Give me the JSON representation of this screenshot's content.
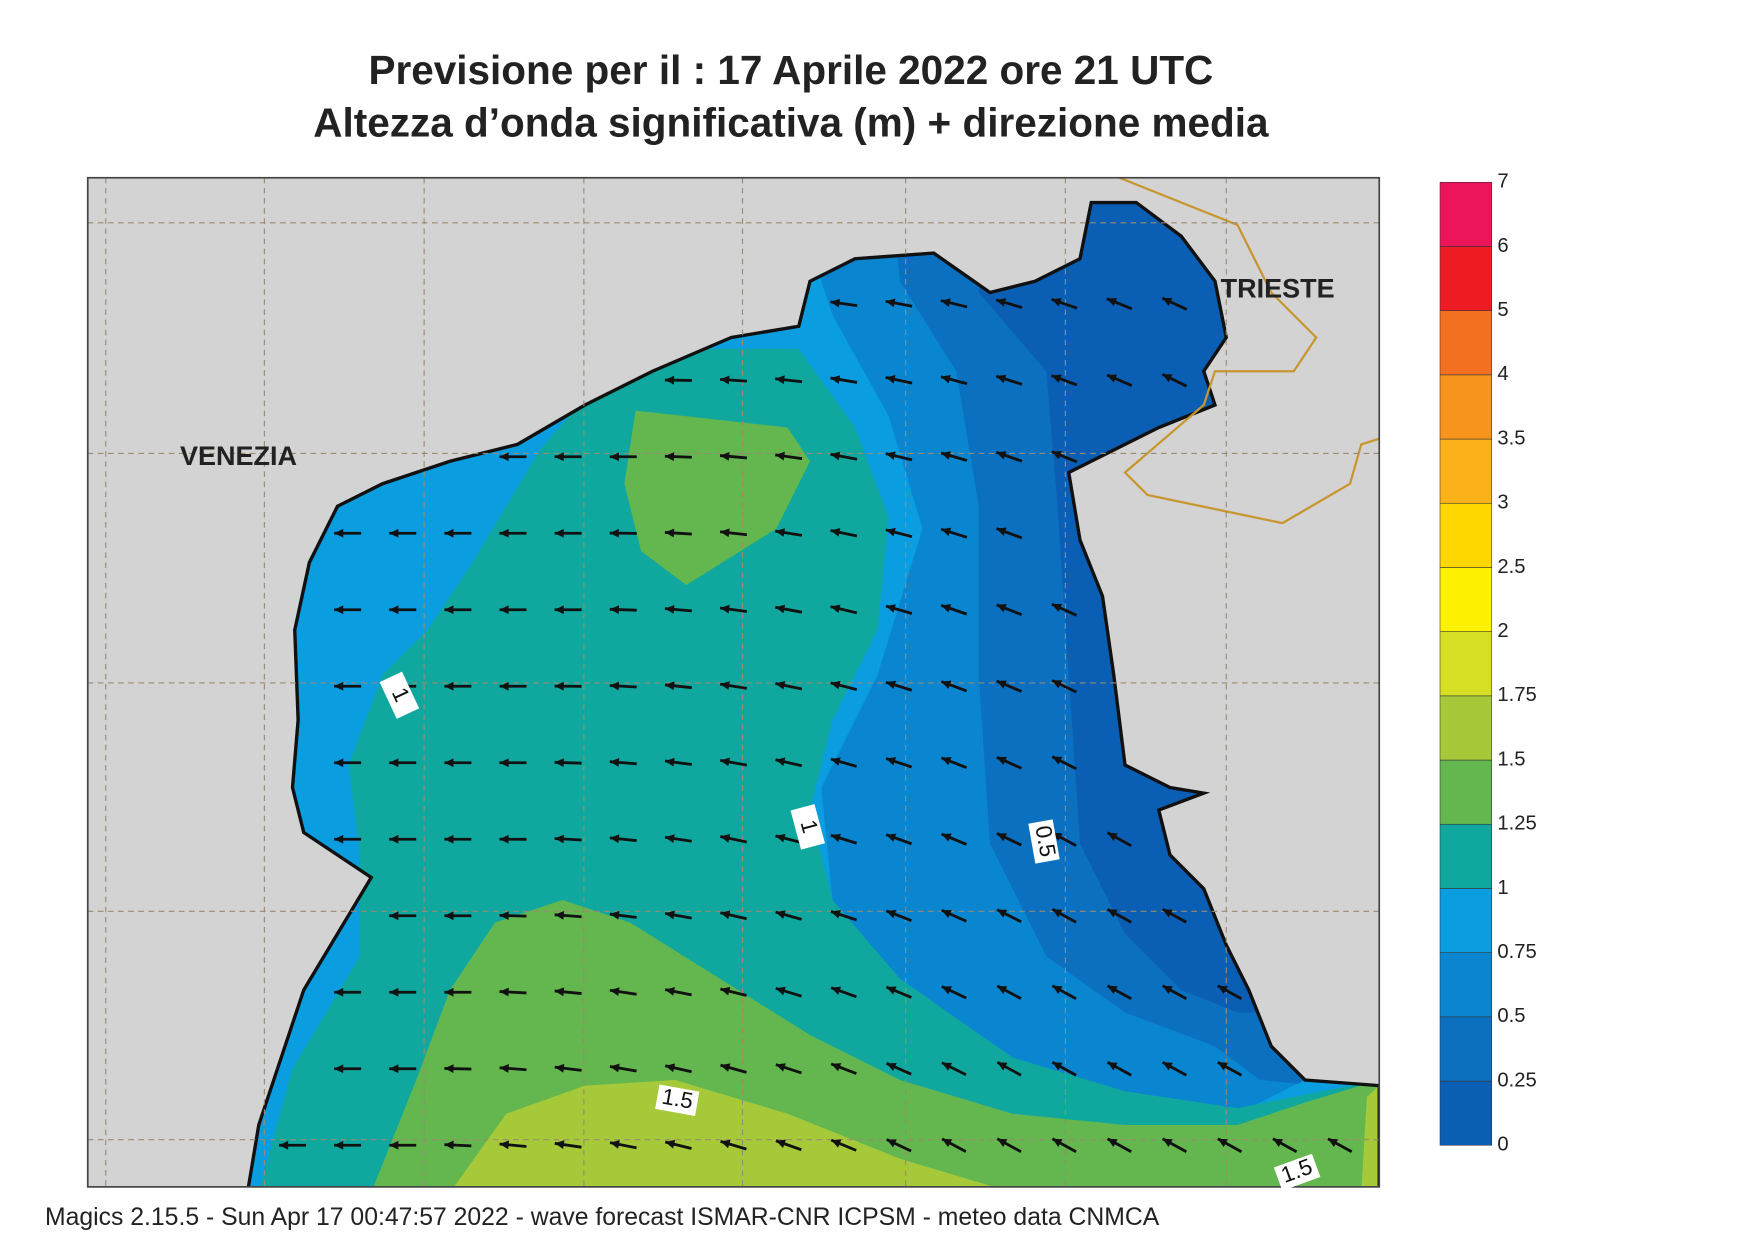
{
  "title": [
    "Previsione per il  :  17   Aprile  2022   ore 21 UTC",
    "Altezza d’onda significativa (m) + direzione media"
  ],
  "places": [
    "VENEZIA",
    "TRIESTE"
  ],
  "contour_labels": [
    "1",
    "1",
    "0.5",
    "1.5",
    "1.5"
  ],
  "colorbar": {
    "levels": [
      0,
      0.25,
      0.5,
      0.75,
      1,
      1.25,
      1.5,
      1.75,
      2,
      2.5,
      3,
      3.5,
      4,
      5,
      6,
      7
    ],
    "colors": [
      "#0a5fb4",
      "#0b70c0",
      "#0a85d0",
      "#0a9de0",
      "#10a89e",
      "#63b74e",
      "#a6c93a",
      "#d6df24",
      "#fff200",
      "#ffd700",
      "#fbb21a",
      "#f7941d",
      "#f37021",
      "#ed1c24",
      "#ec1559"
    ]
  },
  "footer": "Magics 2.15.5 - Sun Apr 17 00:47:57 2022 - wave forecast  ISMAR-CNR  ICPSM - meteo data   CNMCA"
}
